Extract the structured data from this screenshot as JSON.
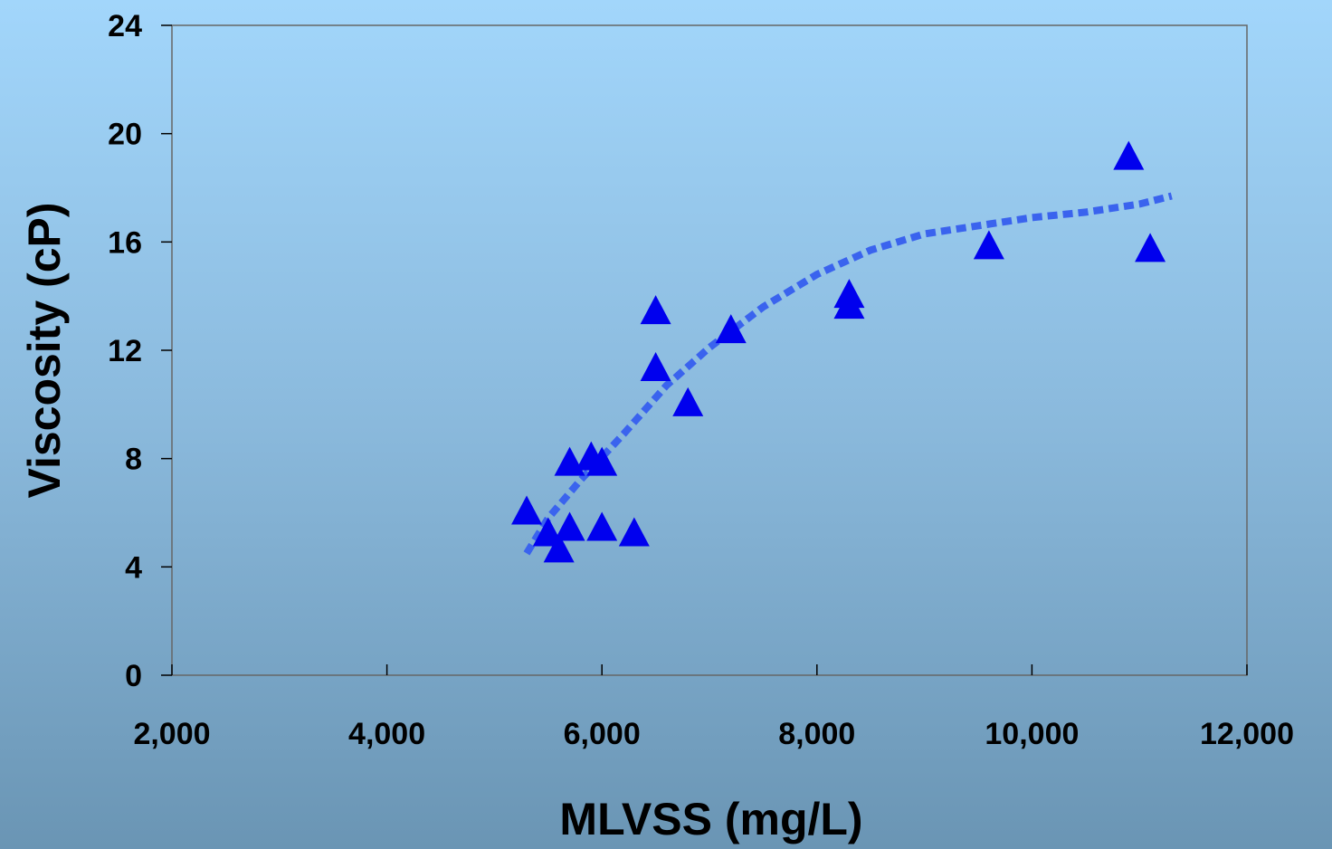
{
  "chart_data": {
    "type": "scatter",
    "title": "",
    "xlabel": "MLVSS (mg/L)",
    "ylabel": "Viscosity (cP)",
    "xlim": [
      2000,
      12000
    ],
    "ylim": [
      0,
      24
    ],
    "xticks": [
      2000,
      4000,
      6000,
      8000,
      10000,
      12000
    ],
    "xtick_labels": [
      "2,000",
      "4,000",
      "6,000",
      "8,000",
      "10,000",
      "12,000"
    ],
    "yticks": [
      0,
      4,
      8,
      12,
      16,
      20,
      24
    ],
    "ytick_labels": [
      "0",
      "4",
      "8",
      "12",
      "16",
      "20",
      "24"
    ],
    "grid": false,
    "marker": "triangle",
    "marker_color": "#0000ee",
    "trend_color": "#3a63ee",
    "points": [
      {
        "x": 5300,
        "y": 6.1
      },
      {
        "x": 5500,
        "y": 5.3
      },
      {
        "x": 5600,
        "y": 4.7
      },
      {
        "x": 5700,
        "y": 7.9
      },
      {
        "x": 5700,
        "y": 5.5
      },
      {
        "x": 5900,
        "y": 8.1
      },
      {
        "x": 6000,
        "y": 7.9
      },
      {
        "x": 6000,
        "y": 5.5
      },
      {
        "x": 6300,
        "y": 5.3
      },
      {
        "x": 6500,
        "y": 13.5
      },
      {
        "x": 6500,
        "y": 11.4
      },
      {
        "x": 6800,
        "y": 10.1
      },
      {
        "x": 7200,
        "y": 12.8
      },
      {
        "x": 8300,
        "y": 14.1
      },
      {
        "x": 8300,
        "y": 13.7
      },
      {
        "x": 9600,
        "y": 15.9
      },
      {
        "x": 10900,
        "y": 19.2
      },
      {
        "x": 11100,
        "y": 15.8
      }
    ],
    "trendline": [
      {
        "x": 5300,
        "y": 4.5
      },
      {
        "x": 5500,
        "y": 5.8
      },
      {
        "x": 5800,
        "y": 7.2
      },
      {
        "x": 6200,
        "y": 8.9
      },
      {
        "x": 6600,
        "y": 10.7
      },
      {
        "x": 7000,
        "y": 12.1
      },
      {
        "x": 7500,
        "y": 13.6
      },
      {
        "x": 8000,
        "y": 14.8
      },
      {
        "x": 8500,
        "y": 15.7
      },
      {
        "x": 9000,
        "y": 16.3
      },
      {
        "x": 9500,
        "y": 16.6
      },
      {
        "x": 10000,
        "y": 16.9
      },
      {
        "x": 10500,
        "y": 17.1
      },
      {
        "x": 11000,
        "y": 17.4
      },
      {
        "x": 11300,
        "y": 17.7
      }
    ]
  }
}
